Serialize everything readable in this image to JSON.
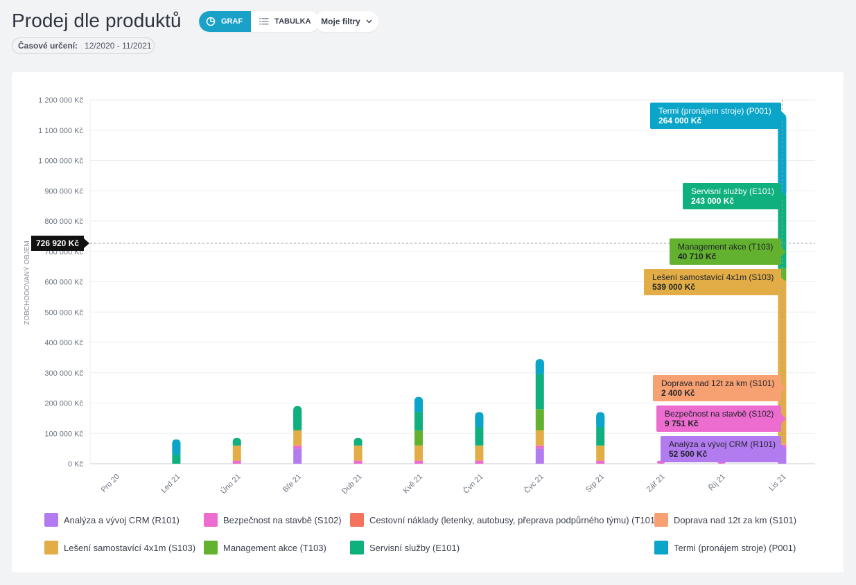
{
  "header": {
    "title": "Prodej dle produktů",
    "view_graph_label": "GRAF",
    "view_table_label": "TABULKA",
    "filters_label": "Moje filtry",
    "period_label": "Časové určení:",
    "period_value": "12/2020 - 11/2021",
    "icons": {
      "graph": "pie-chart-icon",
      "table": "list-icon",
      "filters": "chevron-down-icon"
    }
  },
  "chart_data": {
    "type": "bar",
    "stacked": true,
    "ylabel": "ZOBCHODOVANÝ OBJEM",
    "ylim": [
      0,
      1200000
    ],
    "yticks": [
      0,
      100000,
      200000,
      300000,
      400000,
      500000,
      600000,
      700000,
      800000,
      900000,
      1000000,
      1100000,
      1200000
    ],
    "ytick_labels": [
      "0 Kč",
      "100 000 Kč",
      "200 000 Kč",
      "300 000 Kč",
      "400 000 Kč",
      "500 000 Kč",
      "600 000 Kč",
      "700 000 Kč",
      "800 000 Kč",
      "900 000 Kč",
      "1 000 000 Kč",
      "1 100 000 Kč",
      "1 200 000 Kč"
    ],
    "categories": [
      "Pro 20",
      "Led 21",
      "Úno 21",
      "Bře 21",
      "Dub 21",
      "Kvě 21",
      "Čvn 21",
      "Čvc 21",
      "Srp 21",
      "Zář 21",
      "Říj 21",
      "Lis 21"
    ],
    "series": [
      {
        "name": "Analýza a vývoj CRM (R101)",
        "color": "#b27cf0",
        "values": [
          0,
          0,
          0,
          50000,
          0,
          0,
          0,
          50000,
          0,
          0,
          0,
          52500
        ]
      },
      {
        "name": "Bezpečnost na stavbě (S102)",
        "color": "#ec6cd0",
        "values": [
          0,
          0,
          10000,
          10000,
          10000,
          10000,
          10000,
          10000,
          10000,
          10000,
          10000,
          9751
        ]
      },
      {
        "name": "Cestovní náklady (letenky, autobusy, přeprava podpůrného týmu) (T101)",
        "color": "#f4735c",
        "values": [
          0,
          0,
          0,
          0,
          0,
          0,
          0,
          0,
          0,
          0,
          0,
          0
        ]
      },
      {
        "name": "Doprava nad 12t za km (S101)",
        "color": "#f7a072",
        "values": [
          0,
          0,
          0,
          0,
          0,
          0,
          0,
          0,
          0,
          0,
          0,
          2400
        ]
      },
      {
        "name": "Lešení samostavící 4x1m (S103)",
        "color": "#e2ad47",
        "values": [
          0,
          0,
          50000,
          50000,
          50000,
          50000,
          50000,
          50000,
          50000,
          0,
          0,
          539000
        ]
      },
      {
        "name": "Management akce (T103)",
        "color": "#62b22f",
        "values": [
          0,
          0,
          0,
          0,
          0,
          50000,
          0,
          70000,
          0,
          0,
          0,
          40710
        ]
      },
      {
        "name": "Servisní služby (E101)",
        "color": "#0fb07e",
        "values": [
          0,
          30000,
          25000,
          80000,
          25000,
          60000,
          60000,
          115000,
          60000,
          0,
          0,
          243000
        ]
      },
      {
        "name": "Termi (pronájem stroje) (P001)",
        "color": "#0aa5c8",
        "values": [
          0,
          50000,
          0,
          0,
          0,
          50000,
          50000,
          50000,
          50000,
          0,
          0,
          264000
        ]
      }
    ],
    "average_line": {
      "value": 726920,
      "label": "726 920 Kč"
    },
    "tooltip": {
      "category": "Lis 21",
      "items": [
        {
          "name": "Termi (pronájem stroje) (P001)",
          "value_label": "264 000 Kč",
          "color": "#0aa5c8"
        },
        {
          "name": "Servisní služby (E101)",
          "value_label": "243 000 Kč",
          "color": "#0fb07e"
        },
        {
          "name": "Management akce (T103)",
          "value_label": "40 710 Kč",
          "color": "#62b22f"
        },
        {
          "name": "Lešení samostavící 4x1m (S103)",
          "value_label": "539 000 Kč",
          "color": "#e2ad47"
        },
        {
          "name": "Doprava nad 12t za km (S101)",
          "value_label": "2 400 Kč",
          "color": "#f7a072"
        },
        {
          "name": "Bezpečnost na stavbě (S102)",
          "value_label": "9 751 Kč",
          "color": "#ec6cd0"
        },
        {
          "name": "Analýza a vývoj CRM (R101)",
          "value_label": "52 500 Kč",
          "color": "#b27cf0"
        }
      ]
    },
    "grid": true,
    "legend_position": "bottom"
  }
}
